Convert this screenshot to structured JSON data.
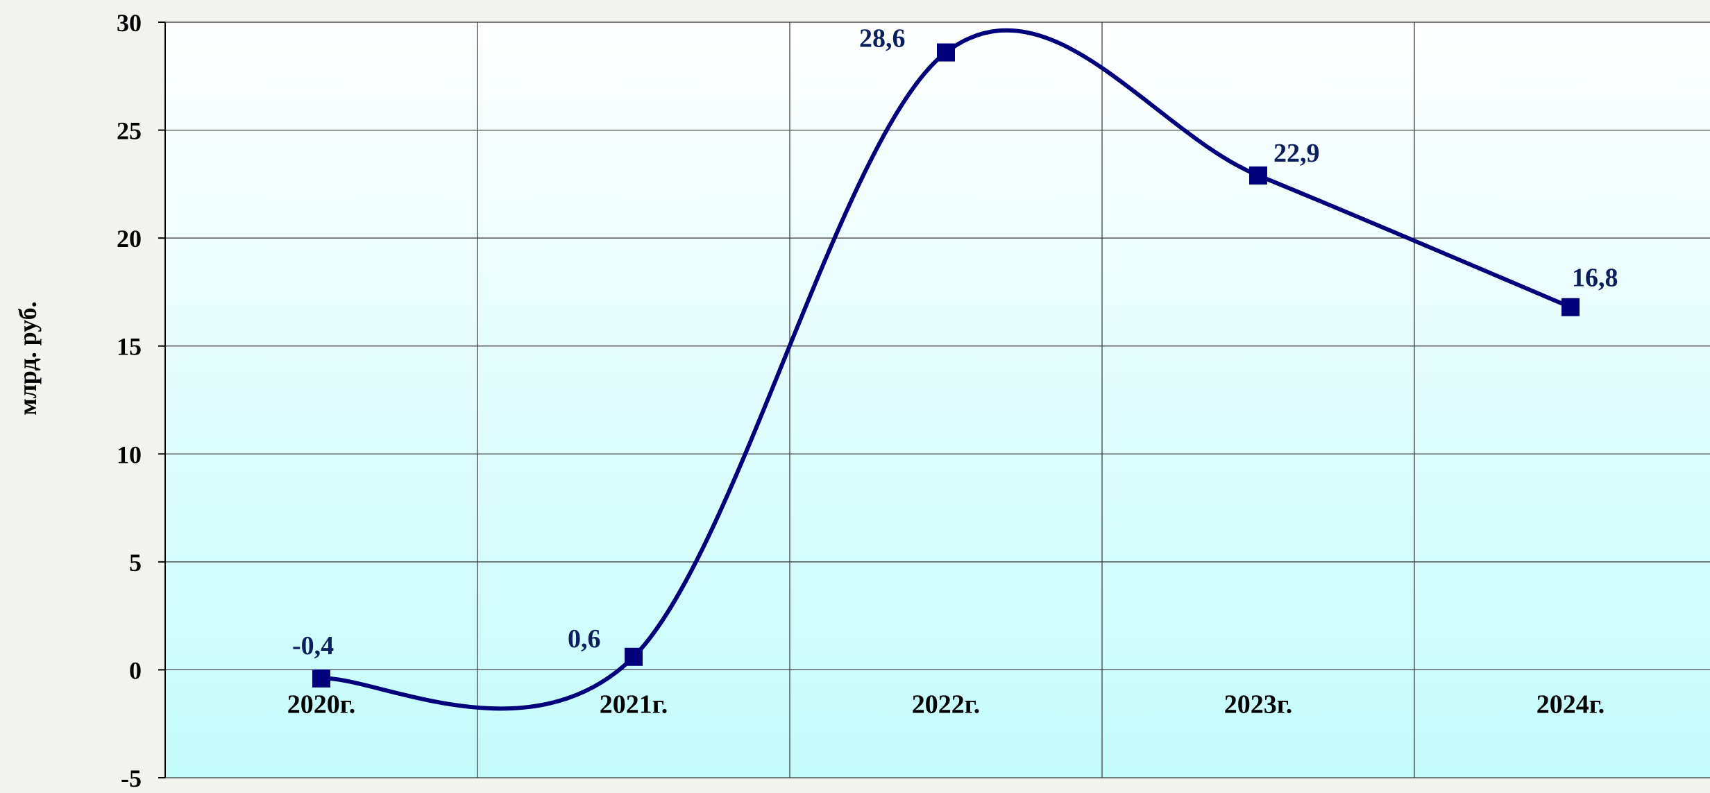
{
  "chart_data": {
    "type": "line",
    "title": "",
    "xlabel": "",
    "ylabel": "млрд. руб.",
    "categories": [
      "2020г.",
      "2021г.",
      "2022г.",
      "2023г.",
      "2024г."
    ],
    "series": [
      {
        "values": [
          -0.4,
          0.6,
          28.6,
          22.9,
          16.8
        ],
        "labels": [
          "-0,4",
          "0,6",
          "28,6",
          "22,9",
          "16,8"
        ],
        "color": "#00007a",
        "marker": "square",
        "smooth": true
      }
    ],
    "ylim": [
      -5,
      30
    ],
    "yticks": [
      30,
      25,
      20,
      15,
      10,
      5,
      0,
      -5
    ],
    "grid": true,
    "legend": "none",
    "colors": {
      "line": "#00007a",
      "label": "#0a1f5c",
      "tick_text": "#000000",
      "grid": "#333333",
      "plot_top": "#ffffff",
      "plot_bottom": "#c4fbfb"
    }
  }
}
